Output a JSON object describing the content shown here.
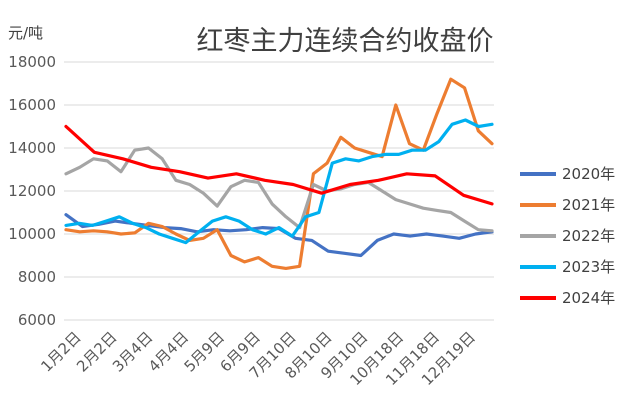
{
  "chart_data": {
    "type": "line",
    "title": "红枣主力连续合约收盘价",
    "ylabel": "元/吨",
    "xlabel": "",
    "ylim": [
      6000,
      18000
    ],
    "yticks": [
      6000,
      8000,
      10000,
      12000,
      14000,
      16000,
      18000
    ],
    "x_tick_labels": [
      "1月2日",
      "2月2日",
      "3月4日",
      "4月4日",
      "5月9日",
      "6月9日",
      "7月10日",
      "8月10日",
      "9月10日",
      "10月18日",
      "11月18日",
      "12月19日"
    ],
    "legend_position": "right",
    "grid": true,
    "series": [
      {
        "name": "2020年",
        "color": "#4472C4",
        "values": [
          10900,
          10350,
          10450,
          10600,
          10500,
          10400,
          10300,
          10250,
          10100,
          10200,
          10150,
          10200,
          10300,
          10250,
          9800,
          9700,
          9200,
          9100,
          9000,
          9700,
          10000,
          9900,
          10000,
          9900,
          9800,
          10000,
          10100
        ]
      },
      {
        "name": "2021年",
        "color": "#ED7D31",
        "values": [
          10200,
          10100,
          10150,
          10100,
          10000,
          10050,
          10500,
          10350,
          10000,
          9700,
          9800,
          10200,
          9000,
          8700,
          8900,
          8500,
          8400,
          8500,
          12800,
          13300,
          14500,
          14000,
          13800,
          13600,
          16000,
          14200,
          13900,
          15600,
          17200,
          16800,
          14800,
          14200
        ]
      },
      {
        "name": "2022年",
        "color": "#A5A5A5",
        "values": [
          12800,
          13100,
          13500,
          13400,
          12900,
          13900,
          14000,
          13500,
          12500,
          12300,
          11900,
          11300,
          12200,
          12500,
          12400,
          11400,
          10800,
          10300,
          12300,
          12000,
          12100,
          12300,
          12400,
          12000,
          11600,
          11400,
          11200,
          11100,
          11000,
          10600,
          10200,
          10150
        ]
      },
      {
        "name": "2023年",
        "color": "#00B0F0",
        "values": [
          10400,
          10500,
          10400,
          10600,
          10800,
          10500,
          10300,
          10000,
          9800,
          9600,
          10100,
          10600,
          10800,
          10600,
          10200,
          10000,
          10300,
          9900,
          10800,
          11000,
          13300,
          13500,
          13400,
          13600,
          13700,
          13700,
          13900,
          13900,
          14300,
          15100,
          15300,
          15000,
          15100
        ]
      },
      {
        "name": "2024年",
        "color": "#FF0000",
        "values": [
          15000,
          13800,
          13500,
          13100,
          12900,
          12600,
          12800,
          12500,
          12300,
          11900,
          12300,
          12500,
          12800,
          12700,
          11800,
          11400
        ]
      }
    ]
  }
}
